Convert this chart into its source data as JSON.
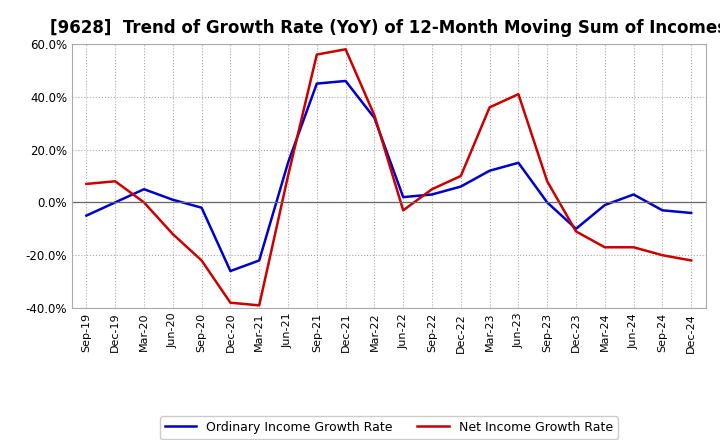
{
  "title": "[9628]  Trend of Growth Rate (YoY) of 12-Month Moving Sum of Incomes",
  "x_labels": [
    "Sep-19",
    "Dec-19",
    "Mar-20",
    "Jun-20",
    "Sep-20",
    "Dec-20",
    "Mar-21",
    "Jun-21",
    "Sep-21",
    "Dec-21",
    "Mar-22",
    "Jun-22",
    "Sep-22",
    "Dec-22",
    "Mar-23",
    "Jun-23",
    "Sep-23",
    "Dec-23",
    "Mar-24",
    "Jun-24",
    "Sep-24",
    "Dec-24"
  ],
  "ordinary_income": [
    -0.05,
    0.0,
    0.05,
    0.01,
    -0.02,
    -0.26,
    -0.22,
    0.15,
    0.45,
    0.46,
    0.32,
    0.02,
    0.03,
    0.06,
    0.12,
    0.15,
    0.0,
    -0.1,
    -0.01,
    0.03,
    -0.03,
    -0.04
  ],
  "net_income": [
    0.07,
    0.08,
    0.0,
    -0.12,
    -0.22,
    -0.38,
    -0.39,
    0.1,
    0.56,
    0.58,
    0.33,
    -0.03,
    0.05,
    0.1,
    0.36,
    0.41,
    0.08,
    -0.11,
    -0.17,
    -0.17,
    -0.2,
    -0.22
  ],
  "ordinary_color": "#0000cc",
  "net_color": "#cc0000",
  "ylim": [
    -0.4,
    0.6
  ],
  "yticks": [
    -0.4,
    -0.2,
    0.0,
    0.2,
    0.4,
    0.6
  ],
  "background_color": "#ffffff",
  "plot_bg_color": "#ffffff",
  "grid_color": "#aaaaaa",
  "title_fontsize": 12,
  "legend_labels": [
    "Ordinary Income Growth Rate",
    "Net Income Growth Rate"
  ]
}
